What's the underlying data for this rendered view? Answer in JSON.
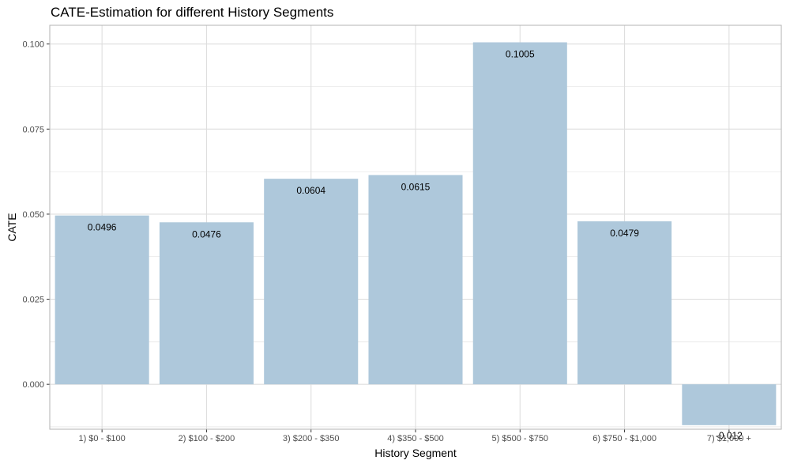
{
  "chart_data": {
    "type": "bar",
    "title": "CATE-Estimation for different History Segments",
    "xlabel": "History Segment",
    "ylabel": "CATE",
    "categories": [
      "1) $0 - $100",
      "2) $100 - $200",
      "3) $200 - $350",
      "4) $350 - $500",
      "5) $500 - $750",
      "6) $750 - $1,000",
      "7) $1,000 +"
    ],
    "values": [
      0.0496,
      0.0476,
      0.0604,
      0.0615,
      0.1005,
      0.0479,
      -0.012
    ],
    "data_labels": [
      "0.0496",
      "0.0476",
      "0.0604",
      "0.0615",
      "0.1005",
      "0.0479",
      "-0.012"
    ],
    "ylim": [
      -0.0132,
      0.1055
    ],
    "yticks": [
      0.0,
      0.025,
      0.05,
      0.075,
      0.1
    ],
    "ytick_labels": [
      "0.000",
      "0.025",
      "0.050",
      "0.075",
      "0.100"
    ],
    "grid": true,
    "legend": "none",
    "bar_color": "#aec8db",
    "grid_color": "#dedede",
    "panel_border_color": "#b3b3b3"
  }
}
